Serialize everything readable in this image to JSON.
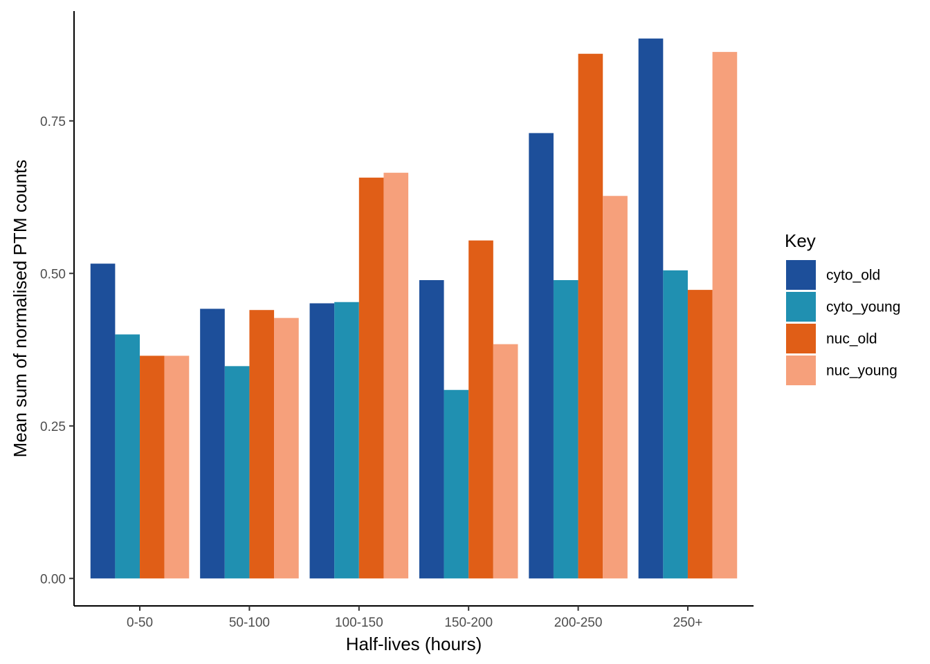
{
  "chart_data": {
    "type": "bar",
    "title": "",
    "xlabel": "Half-lives (hours)",
    "ylabel": "Mean sum of normalised PTM counts",
    "categories": [
      "0-50",
      "50-100",
      "100-150",
      "150-200",
      "200-250",
      "250+"
    ],
    "series": [
      {
        "name": "cyto_old",
        "color": "#1d4f9a",
        "values": [
          0.516,
          0.442,
          0.451,
          0.489,
          0.73,
          0.885
        ]
      },
      {
        "name": "cyto_young",
        "color": "#2090b1",
        "values": [
          0.4,
          0.348,
          0.453,
          0.309,
          0.489,
          0.505
        ]
      },
      {
        "name": "nuc_old",
        "color": "#e05e17",
        "values": [
          0.365,
          0.44,
          0.657,
          0.554,
          0.86,
          0.473
        ]
      },
      {
        "name": "nuc_young",
        "color": "#f6a07b",
        "values": [
          0.365,
          0.427,
          0.665,
          0.384,
          0.627,
          0.863
        ]
      }
    ],
    "yticks": [
      "0.00",
      "0.25",
      "0.50",
      "0.75"
    ],
    "ylim": [
      -0.045,
      0.93
    ],
    "grid": false,
    "legend": {
      "title": "Key",
      "position": "right"
    }
  }
}
